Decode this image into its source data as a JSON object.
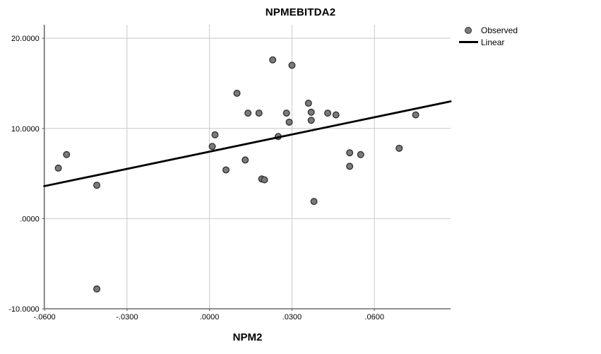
{
  "chart_data": {
    "type": "scatter",
    "title": "NPMEBITDA2",
    "xlabel": "NPM2",
    "ylabel": "",
    "grid": true,
    "legend_position": "top-right",
    "xlim": [
      -0.0601,
      0.0877
    ],
    "ylim": [
      -10.0,
      21.5
    ],
    "x_ticks": [
      {
        "value": -0.06,
        "label": "-.0600"
      },
      {
        "value": -0.03,
        "label": "-.0300"
      },
      {
        "value": 0.0,
        "label": ".0000"
      },
      {
        "value": 0.03,
        "label": ".0300"
      },
      {
        "value": 0.06,
        "label": ".0600"
      }
    ],
    "y_ticks": [
      {
        "value": 20,
        "label": "20.0000"
      },
      {
        "value": 10,
        "label": "10.0000"
      },
      {
        "value": 0,
        "label": ".0000"
      },
      {
        "value": -10,
        "label": "-10.0000"
      }
    ],
    "legend": [
      {
        "label": "Observed",
        "marker": "point"
      },
      {
        "label": "Linear",
        "marker": "line"
      }
    ],
    "series": [
      {
        "name": "Observed",
        "type": "scatter",
        "points": [
          [
            -0.055,
            5.6
          ],
          [
            -0.052,
            7.1
          ],
          [
            -0.041,
            3.7
          ],
          [
            -0.041,
            -7.8
          ],
          [
            0.001,
            8.0
          ],
          [
            0.002,
            9.3
          ],
          [
            0.006,
            5.4
          ],
          [
            0.01,
            13.9
          ],
          [
            0.013,
            6.5
          ],
          [
            0.014,
            11.7
          ],
          [
            0.018,
            11.7
          ],
          [
            0.019,
            4.4
          ],
          [
            0.02,
            4.3
          ],
          [
            0.023,
            17.6
          ],
          [
            0.025,
            9.1
          ],
          [
            0.028,
            11.7
          ],
          [
            0.029,
            10.7
          ],
          [
            0.03,
            17.0
          ],
          [
            0.036,
            12.8
          ],
          [
            0.037,
            11.8
          ],
          [
            0.037,
            10.9
          ],
          [
            0.038,
            1.9
          ],
          [
            0.043,
            11.7
          ],
          [
            0.046,
            11.5
          ],
          [
            0.051,
            7.3
          ],
          [
            0.051,
            5.8
          ],
          [
            0.055,
            7.1
          ],
          [
            0.069,
            7.8
          ],
          [
            0.075,
            11.5
          ]
        ]
      },
      {
        "name": "Linear",
        "type": "line",
        "start": [
          -0.0601,
          3.6
        ],
        "end": [
          0.0877,
          13.0
        ]
      }
    ],
    "colors": {
      "background": "#ffffff",
      "marker_fill": "#7b7b7b",
      "marker_stroke": "#333333",
      "fit_line": "#000000",
      "grid": "#c9c9c9",
      "axis": "#6b6b6b",
      "text": "#000000"
    }
  }
}
